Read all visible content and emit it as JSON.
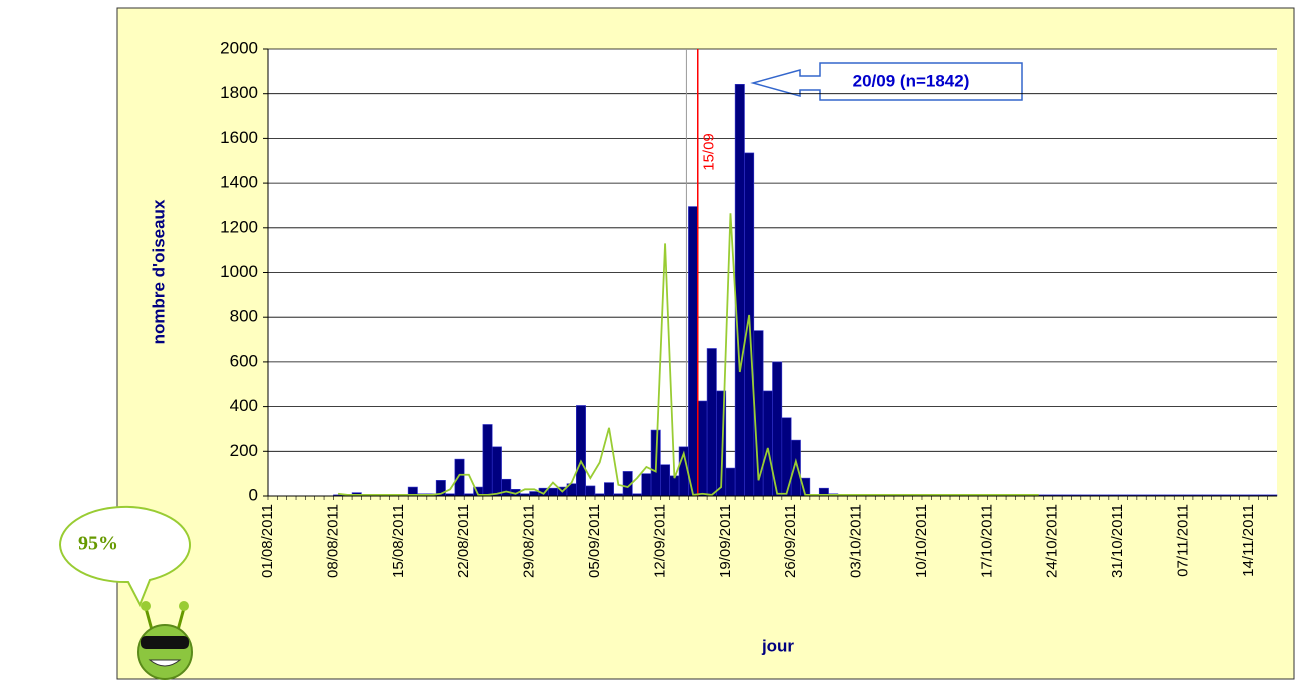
{
  "chart_data": {
    "type": "bar",
    "badge": "95%",
    "ylabel": "nombre d'oiseaux",
    "xlabel": "jour",
    "annotation": "20/09 (n=1842)",
    "reference_line": {
      "label": "15/09",
      "color": "#ff0000"
    },
    "ylim": [
      0,
      2000
    ],
    "yticks": [
      0,
      200,
      400,
      600,
      800,
      1000,
      1200,
      1400,
      1600,
      1800,
      2000
    ],
    "grid": true,
    "categories": [
      "01/08/2011",
      null,
      null,
      null,
      null,
      null,
      null,
      "08/08/2011",
      null,
      null,
      null,
      null,
      null,
      null,
      "15/08/2011",
      null,
      null,
      null,
      null,
      null,
      null,
      "22/08/2011",
      null,
      null,
      null,
      null,
      null,
      null,
      "29/08/2011",
      null,
      null,
      null,
      null,
      null,
      null,
      "05/09/2011",
      null,
      null,
      null,
      null,
      null,
      null,
      "12/09/2011",
      null,
      null,
      null,
      null,
      null,
      null,
      "19/09/2011",
      null,
      null,
      null,
      null,
      null,
      null,
      "26/09/2011",
      null,
      null,
      null,
      null,
      null,
      null,
      "03/10/2011",
      null,
      null,
      null,
      null,
      null,
      null,
      "10/10/2011",
      null,
      null,
      null,
      null,
      null,
      null,
      "17/10/2011",
      null,
      null,
      null,
      null,
      null,
      null,
      "24/10/2011",
      null,
      null,
      null,
      null,
      null,
      null,
      "31/10/2011",
      null,
      null,
      null,
      null,
      null,
      null,
      "07/11/2011",
      null,
      null,
      null,
      null,
      null,
      null,
      "14/11/2011",
      null,
      null
    ],
    "series": [
      {
        "type": "bar",
        "color": "#000080",
        "values": [
          0,
          0,
          0,
          0,
          0,
          0,
          0,
          5,
          5,
          15,
          5,
          5,
          5,
          5,
          5,
          40,
          10,
          10,
          70,
          10,
          165,
          10,
          40,
          320,
          220,
          75,
          30,
          10,
          20,
          35,
          35,
          40,
          55,
          405,
          45,
          10,
          60,
          10,
          110,
          10,
          100,
          295,
          140,
          90,
          220,
          1295,
          425,
          660,
          470,
          125,
          1842,
          1535,
          740,
          470,
          600,
          350,
          250,
          80,
          5,
          35,
          10,
          5,
          5,
          5,
          5,
          5,
          5,
          5,
          5,
          5,
          5,
          5,
          5,
          5,
          5,
          5,
          5,
          5,
          5,
          5,
          5,
          5,
          5,
          5,
          5,
          5,
          5,
          5,
          5,
          5,
          5,
          5,
          5,
          5,
          5,
          5,
          5,
          5,
          5,
          5,
          5,
          5,
          5,
          5,
          5,
          5,
          5,
          5
        ]
      },
      {
        "type": "line",
        "color": "#99cc33",
        "values": [
          null,
          null,
          null,
          null,
          null,
          null,
          null,
          10,
          5,
          5,
          5,
          5,
          5,
          5,
          5,
          5,
          5,
          5,
          10,
          30,
          95,
          95,
          5,
          5,
          10,
          20,
          10,
          30,
          30,
          10,
          60,
          20,
          60,
          155,
          80,
          150,
          305,
          50,
          40,
          80,
          130,
          110,
          1130,
          80,
          190,
          5,
          10,
          5,
          40,
          1265,
          555,
          810,
          70,
          215,
          10,
          10,
          155,
          5,
          5,
          5,
          5,
          5,
          5,
          5,
          5,
          5,
          5,
          5,
          5,
          5,
          5,
          5,
          5,
          5,
          5,
          5,
          5,
          5,
          5,
          5,
          5,
          5,
          5,
          null,
          null,
          null,
          null,
          null,
          null,
          null,
          null,
          null,
          null,
          null,
          null,
          null,
          null,
          null,
          null,
          null,
          null,
          null,
          null,
          null,
          null,
          null,
          null,
          null
        ]
      }
    ]
  }
}
